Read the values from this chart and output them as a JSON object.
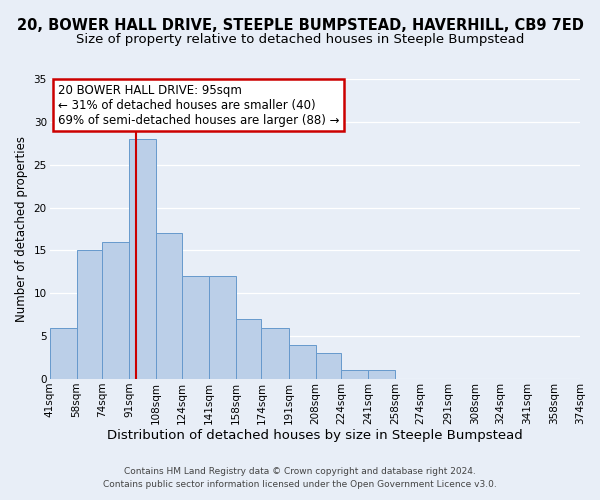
{
  "title_line1": "20, BOWER HALL DRIVE, STEEPLE BUMPSTEAD, HAVERHILL, CB9 7ED",
  "title_line2": "Size of property relative to detached houses in Steeple Bumpstead",
  "xlabel": "Distribution of detached houses by size in Steeple Bumpstead",
  "ylabel": "Number of detached properties",
  "bin_labels": [
    "41sqm",
    "58sqm",
    "74sqm",
    "91sqm",
    "108sqm",
    "124sqm",
    "141sqm",
    "158sqm",
    "174sqm",
    "191sqm",
    "208sqm",
    "224sqm",
    "241sqm",
    "258sqm",
    "274sqm",
    "291sqm",
    "308sqm",
    "324sqm",
    "341sqm",
    "358sqm",
    "374sqm"
  ],
  "bin_edges": [
    41,
    58,
    74,
    91,
    108,
    124,
    141,
    158,
    174,
    191,
    208,
    224,
    241,
    258,
    274,
    291,
    308,
    324,
    341,
    358,
    374
  ],
  "bar_heights": [
    6,
    15,
    16,
    28,
    17,
    12,
    12,
    7,
    6,
    4,
    3,
    1,
    1,
    0,
    0,
    0,
    0,
    0,
    0,
    0
  ],
  "bar_color": "#BBCFE8",
  "bar_edge_color": "#6699CC",
  "ylim": [
    0,
    35
  ],
  "yticks": [
    0,
    5,
    10,
    15,
    20,
    25,
    30,
    35
  ],
  "vline_x": 95,
  "vline_color": "#CC0000",
  "annotation_title": "20 BOWER HALL DRIVE: 95sqm",
  "annotation_line1": "← 31% of detached houses are smaller (40)",
  "annotation_line2": "69% of semi-detached houses are larger (88) →",
  "annotation_box_edge_color": "#CC0000",
  "footnote_line1": "Contains HM Land Registry data © Crown copyright and database right 2024.",
  "footnote_line2": "Contains public sector information licensed under the Open Government Licence v3.0.",
  "background_color": "#E8EEF7",
  "grid_color": "#FFFFFF",
  "title_fontsize": 10.5,
  "subtitle_fontsize": 9.5,
  "xlabel_fontsize": 9.5,
  "ylabel_fontsize": 8.5,
  "tick_fontsize": 7.5,
  "annotation_fontsize": 8.5,
  "footnote_fontsize": 6.5
}
